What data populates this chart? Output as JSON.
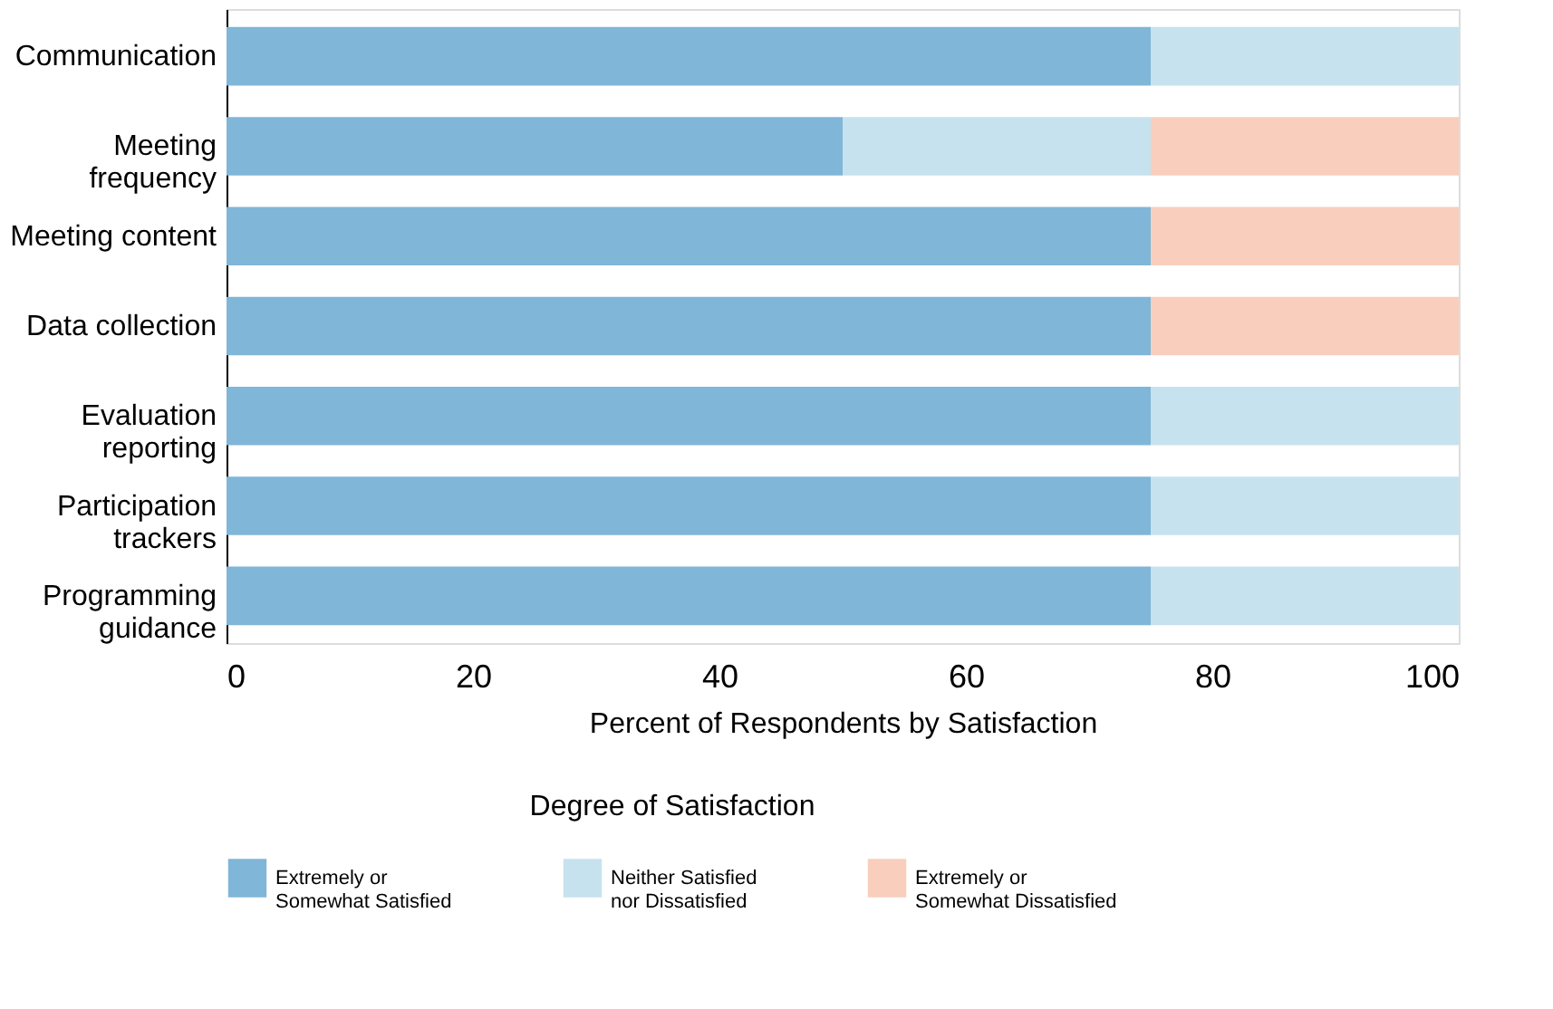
{
  "chart_data": {
    "type": "bar",
    "orientation": "horizontal",
    "stacked": true,
    "xlabel": "Percent of Respondents by Satisfaction",
    "legend_title": "Degree of Satisfaction",
    "legend": "bottom",
    "grid": false,
    "categories": [
      "Communication",
      "Meeting frequency",
      "Meeting content",
      "Data collection",
      "Evaluation reporting",
      "Participation trackers",
      "Programming guidance"
    ],
    "series": [
      {
        "name": "Extremely or Somewhat Satisfied",
        "color": "#80b6d8",
        "values": [
          75,
          50,
          75,
          75,
          75,
          75,
          75
        ]
      },
      {
        "name": "Neither Satisfied nor Dissatisfied",
        "color": "#c6e2ef",
        "values": [
          25,
          25,
          0,
          0,
          25,
          25,
          25
        ]
      },
      {
        "name": "Extremely or Somewhat Dissatisfied",
        "color": "#f9cebd",
        "values": [
          0,
          25,
          25,
          25,
          0,
          0,
          0
        ]
      }
    ],
    "xlim": [
      0,
      100
    ],
    "xticks": [
      0,
      20,
      40,
      60,
      80,
      100
    ]
  }
}
